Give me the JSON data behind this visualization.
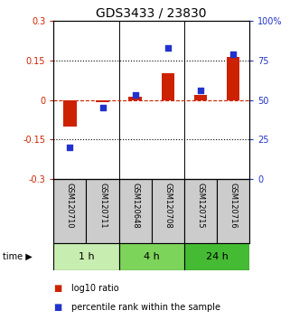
{
  "title": "GDS3433 / 23830",
  "samples": [
    "GSM120710",
    "GSM120711",
    "GSM120648",
    "GSM120708",
    "GSM120715",
    "GSM120716"
  ],
  "log10_ratio": [
    -0.1,
    -0.008,
    0.013,
    0.1,
    0.018,
    0.162
  ],
  "percentile_rank": [
    20.0,
    45.0,
    53.0,
    83.0,
    56.0,
    79.0
  ],
  "time_groups": [
    {
      "label": "1 h",
      "indices": [
        0,
        1
      ]
    },
    {
      "label": "4 h",
      "indices": [
        2,
        3
      ]
    },
    {
      "label": "24 h",
      "indices": [
        4,
        5
      ]
    }
  ],
  "time_group_colors": [
    "#c8edb0",
    "#7dd45a",
    "#44bb33"
  ],
  "ylim_left": [
    -0.3,
    0.3
  ],
  "ylim_right": [
    0,
    100
  ],
  "yticks_left": [
    -0.3,
    -0.15,
    0.0,
    0.15,
    0.3
  ],
  "ytick_labels_left": [
    "-0.3",
    "-0.15",
    "0",
    "0.15",
    "0.3"
  ],
  "yticks_right": [
    0,
    25,
    50,
    75,
    100
  ],
  "ytick_labels_right": [
    "0",
    "25",
    "50",
    "75",
    "100%"
  ],
  "bar_color": "#cc2200",
  "dot_color": "#2233cc",
  "background_color": "#ffffff",
  "sample_box_color": "#cccccc",
  "title_fontsize": 10,
  "tick_fontsize": 7,
  "label_fontsize": 6,
  "legend_fontsize": 7,
  "time_fontsize": 8,
  "bar_width": 0.4
}
